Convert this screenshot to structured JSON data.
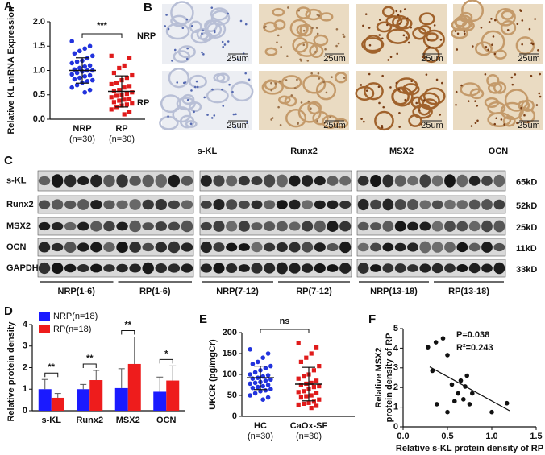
{
  "chart_data": [
    {
      "panel": "A",
      "type": "strip",
      "ylabel": "Relative KL mRNA Expression",
      "ylim": [
        0,
        2
      ],
      "yticks": [
        {
          "value": 0,
          "label": "0.0"
        },
        {
          "value": 0.5,
          "label": "0.5"
        },
        {
          "value": 1,
          "label": "1.0"
        },
        {
          "value": 1.5,
          "label": "1.5"
        },
        {
          "value": 2,
          "label": "2.0"
        }
      ],
      "categories": [
        "NRP",
        "RP"
      ],
      "n_labels": [
        "(n=30)",
        "(n=30)"
      ],
      "significance": "***",
      "groups": [
        {
          "color": "#2233dd",
          "marker": "circle",
          "mean": 1.0,
          "sd": 0.26,
          "values": [
            1.6,
            1.5,
            1.45,
            1.4,
            1.35,
            1.3,
            1.25,
            1.2,
            1.18,
            1.15,
            1.1,
            1.08,
            1.05,
            1.02,
            1.0,
            1.0,
            0.98,
            0.95,
            0.92,
            0.9,
            0.88,
            0.85,
            0.82,
            0.8,
            0.78,
            0.75,
            0.7,
            0.65,
            0.6,
            0.55
          ]
        },
        {
          "color": "#e01b1b",
          "marker": "square",
          "mean": 0.57,
          "sd": 0.32,
          "values": [
            1.3,
            1.25,
            1.1,
            1.05,
            0.95,
            0.9,
            0.85,
            0.8,
            0.75,
            0.72,
            0.68,
            0.65,
            0.6,
            0.58,
            0.55,
            0.52,
            0.5,
            0.48,
            0.45,
            0.42,
            0.4,
            0.38,
            0.35,
            0.32,
            0.3,
            0.28,
            0.25,
            0.2,
            0.15,
            0.1
          ]
        }
      ]
    },
    {
      "panel": "D",
      "type": "bar",
      "ylabel": "Relative protein density",
      "ylim": [
        0,
        4
      ],
      "yticks": [
        0,
        1,
        2,
        3,
        4
      ],
      "categories": [
        "s-KL",
        "Runx2",
        "MSX2",
        "OCN"
      ],
      "significance": [
        "**",
        "**",
        "**",
        "*"
      ],
      "series": [
        {
          "name": "NRP(n=18)",
          "color": "#1a1aff",
          "values": [
            1.0,
            1.0,
            1.05,
            0.88
          ],
          "errors": [
            0.45,
            0.22,
            0.9,
            0.68
          ]
        },
        {
          "name": "RP(n=18)",
          "color": "#ee1c1c",
          "values": [
            0.6,
            1.42,
            2.17,
            1.4
          ],
          "errors": [
            0.2,
            0.45,
            1.25,
            0.68
          ]
        }
      ]
    },
    {
      "panel": "E",
      "type": "strip",
      "ylabel": "UKCR (pg/mgCr)",
      "ylim": [
        0,
        200
      ],
      "yticks": [
        0,
        50,
        100,
        150,
        200
      ],
      "categories": [
        "HC",
        "CaOx-SF"
      ],
      "n_labels": [
        "(n=30)",
        "(n=30)"
      ],
      "significance": "ns",
      "groups": [
        {
          "color": "#2233dd",
          "marker": "circle",
          "mean": 92,
          "sd": 28,
          "values": [
            160,
            150,
            140,
            130,
            125,
            120,
            115,
            110,
            105,
            100,
            98,
            95,
            92,
            90,
            88,
            85,
            82,
            80,
            78,
            75,
            72,
            70,
            68,
            65,
            62,
            60,
            55,
            50,
            45,
            40
          ]
        },
        {
          "color": "#e01b1b",
          "marker": "square",
          "mean": 77,
          "sd": 40,
          "values": [
            175,
            165,
            150,
            140,
            130,
            120,
            110,
            100,
            95,
            90,
            85,
            80,
            78,
            75,
            72,
            70,
            65,
            60,
            58,
            55,
            50,
            48,
            45,
            40,
            35,
            32,
            30,
            28,
            25,
            20
          ]
        }
      ]
    },
    {
      "panel": "F",
      "type": "scatter",
      "xlabel": "Relative s-KL protein density of RP",
      "ylabel": [
        "Relative MSX2",
        "protein density of RP"
      ],
      "xlim": [
        0,
        1.5
      ],
      "xticks": [
        {
          "value": 0,
          "label": "0.0"
        },
        {
          "value": 0.5,
          "label": "0.5"
        },
        {
          "value": 1,
          "label": "1.0"
        },
        {
          "value": 1.5,
          "label": "1.5"
        }
      ],
      "ylim": [
        0,
        5
      ],
      "yticks": [
        0,
        1,
        2,
        3,
        4,
        5
      ],
      "x": [
        0.28,
        0.33,
        0.37,
        0.45,
        0.5,
        0.55,
        0.58,
        0.5,
        0.38,
        0.62,
        0.65,
        0.7,
        0.72,
        0.68,
        0.75,
        0.78,
        1.0,
        1.17
      ],
      "y": [
        4.05,
        2.85,
        4.3,
        4.5,
        3.65,
        2.15,
        1.3,
        0.75,
        1.15,
        1.7,
        2.35,
        2.05,
        2.6,
        1.4,
        1.15,
        1.7,
        0.75,
        1.2
      ],
      "trend": {
        "x": [
          0.3,
          1.2
        ],
        "y": [
          3.05,
          0.82
        ]
      },
      "annotations": [
        "P=0.038",
        "R²=0.243"
      ]
    }
  ],
  "panel_b": {
    "panel": "B",
    "rows": [
      "NRP",
      "RP"
    ],
    "columns": [
      "s-KL",
      "Runx2",
      "MSX2",
      "OCN"
    ],
    "scale_bar": "25um"
  },
  "panel_c": {
    "panel": "C",
    "proteins": [
      "s-KL",
      "Runx2",
      "MSX2",
      "OCN",
      "GAPDH"
    ],
    "sizes": [
      "65kD",
      "52kD",
      "25kD",
      "11kD",
      "33kD"
    ],
    "groups": [
      "NRP(1-6)",
      "RP(1-6)",
      "NRP(7-12)",
      "RP(7-12)",
      "NRP(13-18)",
      "RP(13-18)"
    ]
  }
}
